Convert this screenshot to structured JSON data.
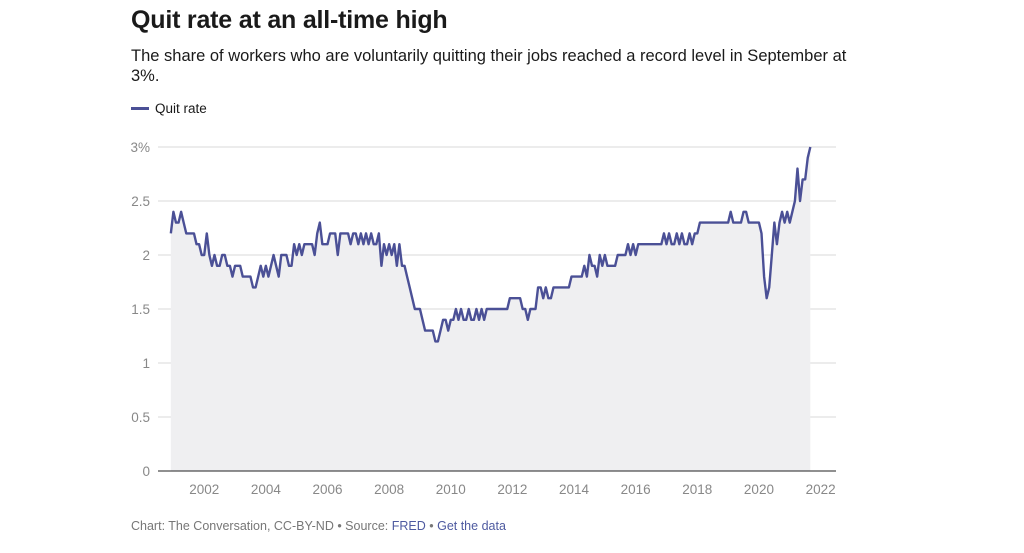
{
  "title": "Quit rate at an all-time high",
  "subtitle": "The share of workers who are voluntarily quitting their jobs reached a record level in September at 3%.",
  "footer": {
    "prefix": "Chart: The Conversation, CC-BY-ND • Source: ",
    "source": "FRED",
    "sep": " • ",
    "get_data": "Get the data"
  },
  "colors": {
    "line": "#4b5096",
    "area": "#efeff1",
    "grid": "#d9d9d9",
    "axis": "#222222"
  },
  "chart_data": {
    "type": "area",
    "series": [
      {
        "name": "Quit rate",
        "points": [
          [
            2000.917,
            2.2
          ],
          [
            2001.0,
            2.4
          ],
          [
            2001.083,
            2.3
          ],
          [
            2001.167,
            2.3
          ],
          [
            2001.25,
            2.4
          ],
          [
            2001.333,
            2.3
          ],
          [
            2001.417,
            2.2
          ],
          [
            2001.5,
            2.2
          ],
          [
            2001.583,
            2.2
          ],
          [
            2001.667,
            2.2
          ],
          [
            2001.75,
            2.1
          ],
          [
            2001.833,
            2.1
          ],
          [
            2001.917,
            2.0
          ],
          [
            2002.0,
            2.0
          ],
          [
            2002.083,
            2.2
          ],
          [
            2002.167,
            2.0
          ],
          [
            2002.25,
            1.9
          ],
          [
            2002.333,
            2.0
          ],
          [
            2002.417,
            1.9
          ],
          [
            2002.5,
            1.9
          ],
          [
            2002.583,
            2.0
          ],
          [
            2002.667,
            2.0
          ],
          [
            2002.75,
            1.9
          ],
          [
            2002.833,
            1.9
          ],
          [
            2002.917,
            1.8
          ],
          [
            2003.0,
            1.9
          ],
          [
            2003.083,
            1.9
          ],
          [
            2003.167,
            1.9
          ],
          [
            2003.25,
            1.8
          ],
          [
            2003.333,
            1.8
          ],
          [
            2003.417,
            1.8
          ],
          [
            2003.5,
            1.8
          ],
          [
            2003.583,
            1.7
          ],
          [
            2003.667,
            1.7
          ],
          [
            2003.75,
            1.8
          ],
          [
            2003.833,
            1.9
          ],
          [
            2003.917,
            1.8
          ],
          [
            2004.0,
            1.9
          ],
          [
            2004.083,
            1.8
          ],
          [
            2004.167,
            1.9
          ],
          [
            2004.25,
            2.0
          ],
          [
            2004.333,
            1.9
          ],
          [
            2004.417,
            1.8
          ],
          [
            2004.5,
            2.0
          ],
          [
            2004.583,
            2.0
          ],
          [
            2004.667,
            2.0
          ],
          [
            2004.75,
            1.9
          ],
          [
            2004.833,
            1.9
          ],
          [
            2004.917,
            2.1
          ],
          [
            2005.0,
            2.0
          ],
          [
            2005.083,
            2.1
          ],
          [
            2005.167,
            2.0
          ],
          [
            2005.25,
            2.1
          ],
          [
            2005.333,
            2.1
          ],
          [
            2005.417,
            2.1
          ],
          [
            2005.5,
            2.1
          ],
          [
            2005.583,
            2.0
          ],
          [
            2005.667,
            2.2
          ],
          [
            2005.75,
            2.3
          ],
          [
            2005.833,
            2.1
          ],
          [
            2005.917,
            2.1
          ],
          [
            2006.0,
            2.1
          ],
          [
            2006.083,
            2.2
          ],
          [
            2006.167,
            2.2
          ],
          [
            2006.25,
            2.2
          ],
          [
            2006.333,
            2.0
          ],
          [
            2006.417,
            2.2
          ],
          [
            2006.5,
            2.2
          ],
          [
            2006.583,
            2.2
          ],
          [
            2006.667,
            2.2
          ],
          [
            2006.75,
            2.1
          ],
          [
            2006.833,
            2.2
          ],
          [
            2006.917,
            2.2
          ],
          [
            2007.0,
            2.1
          ],
          [
            2007.083,
            2.2
          ],
          [
            2007.167,
            2.1
          ],
          [
            2007.25,
            2.2
          ],
          [
            2007.333,
            2.1
          ],
          [
            2007.417,
            2.2
          ],
          [
            2007.5,
            2.1
          ],
          [
            2007.583,
            2.1
          ],
          [
            2007.667,
            2.2
          ],
          [
            2007.75,
            1.9
          ],
          [
            2007.833,
            2.1
          ],
          [
            2007.917,
            2.0
          ],
          [
            2008.0,
            2.1
          ],
          [
            2008.083,
            2.0
          ],
          [
            2008.167,
            2.1
          ],
          [
            2008.25,
            1.9
          ],
          [
            2008.333,
            2.1
          ],
          [
            2008.417,
            1.9
          ],
          [
            2008.5,
            1.9
          ],
          [
            2008.583,
            1.8
          ],
          [
            2008.667,
            1.7
          ],
          [
            2008.75,
            1.6
          ],
          [
            2008.833,
            1.5
          ],
          [
            2008.917,
            1.5
          ],
          [
            2009.0,
            1.5
          ],
          [
            2009.083,
            1.4
          ],
          [
            2009.167,
            1.3
          ],
          [
            2009.25,
            1.3
          ],
          [
            2009.333,
            1.3
          ],
          [
            2009.417,
            1.3
          ],
          [
            2009.5,
            1.2
          ],
          [
            2009.583,
            1.2
          ],
          [
            2009.667,
            1.3
          ],
          [
            2009.75,
            1.4
          ],
          [
            2009.833,
            1.4
          ],
          [
            2009.917,
            1.3
          ],
          [
            2010.0,
            1.4
          ],
          [
            2010.083,
            1.4
          ],
          [
            2010.167,
            1.5
          ],
          [
            2010.25,
            1.4
          ],
          [
            2010.333,
            1.5
          ],
          [
            2010.417,
            1.4
          ],
          [
            2010.5,
            1.4
          ],
          [
            2010.583,
            1.5
          ],
          [
            2010.667,
            1.4
          ],
          [
            2010.75,
            1.4
          ],
          [
            2010.833,
            1.5
          ],
          [
            2010.917,
            1.4
          ],
          [
            2011.0,
            1.5
          ],
          [
            2011.083,
            1.4
          ],
          [
            2011.167,
            1.5
          ],
          [
            2011.25,
            1.5
          ],
          [
            2011.333,
            1.5
          ],
          [
            2011.417,
            1.5
          ],
          [
            2011.5,
            1.5
          ],
          [
            2011.583,
            1.5
          ],
          [
            2011.667,
            1.5
          ],
          [
            2011.75,
            1.5
          ],
          [
            2011.833,
            1.5
          ],
          [
            2011.917,
            1.6
          ],
          [
            2012.0,
            1.6
          ],
          [
            2012.083,
            1.6
          ],
          [
            2012.167,
            1.6
          ],
          [
            2012.25,
            1.6
          ],
          [
            2012.333,
            1.5
          ],
          [
            2012.417,
            1.5
          ],
          [
            2012.5,
            1.4
          ],
          [
            2012.583,
            1.5
          ],
          [
            2012.667,
            1.5
          ],
          [
            2012.75,
            1.5
          ],
          [
            2012.833,
            1.7
          ],
          [
            2012.917,
            1.7
          ],
          [
            2013.0,
            1.6
          ],
          [
            2013.083,
            1.7
          ],
          [
            2013.167,
            1.6
          ],
          [
            2013.25,
            1.6
          ],
          [
            2013.333,
            1.7
          ],
          [
            2013.417,
            1.7
          ],
          [
            2013.5,
            1.7
          ],
          [
            2013.583,
            1.7
          ],
          [
            2013.667,
            1.7
          ],
          [
            2013.75,
            1.7
          ],
          [
            2013.833,
            1.7
          ],
          [
            2013.917,
            1.8
          ],
          [
            2014.0,
            1.8
          ],
          [
            2014.083,
            1.8
          ],
          [
            2014.167,
            1.8
          ],
          [
            2014.25,
            1.8
          ],
          [
            2014.333,
            1.9
          ],
          [
            2014.417,
            1.8
          ],
          [
            2014.5,
            2.0
          ],
          [
            2014.583,
            1.9
          ],
          [
            2014.667,
            1.9
          ],
          [
            2014.75,
            1.8
          ],
          [
            2014.833,
            2.0
          ],
          [
            2014.917,
            1.9
          ],
          [
            2015.0,
            2.0
          ],
          [
            2015.083,
            1.9
          ],
          [
            2015.167,
            1.9
          ],
          [
            2015.25,
            1.9
          ],
          [
            2015.333,
            1.9
          ],
          [
            2015.417,
            2.0
          ],
          [
            2015.5,
            2.0
          ],
          [
            2015.583,
            2.0
          ],
          [
            2015.667,
            2.0
          ],
          [
            2015.75,
            2.1
          ],
          [
            2015.833,
            2.0
          ],
          [
            2015.917,
            2.1
          ],
          [
            2016.0,
            2.0
          ],
          [
            2016.083,
            2.1
          ],
          [
            2016.167,
            2.1
          ],
          [
            2016.25,
            2.1
          ],
          [
            2016.333,
            2.1
          ],
          [
            2016.417,
            2.1
          ],
          [
            2016.5,
            2.1
          ],
          [
            2016.583,
            2.1
          ],
          [
            2016.667,
            2.1
          ],
          [
            2016.75,
            2.1
          ],
          [
            2016.833,
            2.1
          ],
          [
            2016.917,
            2.2
          ],
          [
            2017.0,
            2.1
          ],
          [
            2017.083,
            2.2
          ],
          [
            2017.167,
            2.1
          ],
          [
            2017.25,
            2.1
          ],
          [
            2017.333,
            2.2
          ],
          [
            2017.417,
            2.1
          ],
          [
            2017.5,
            2.2
          ],
          [
            2017.583,
            2.1
          ],
          [
            2017.667,
            2.1
          ],
          [
            2017.75,
            2.2
          ],
          [
            2017.833,
            2.1
          ],
          [
            2017.917,
            2.2
          ],
          [
            2018.0,
            2.2
          ],
          [
            2018.083,
            2.3
          ],
          [
            2018.167,
            2.3
          ],
          [
            2018.25,
            2.3
          ],
          [
            2018.333,
            2.3
          ],
          [
            2018.417,
            2.3
          ],
          [
            2018.5,
            2.3
          ],
          [
            2018.583,
            2.3
          ],
          [
            2018.667,
            2.3
          ],
          [
            2018.75,
            2.3
          ],
          [
            2018.833,
            2.3
          ],
          [
            2018.917,
            2.3
          ],
          [
            2019.0,
            2.3
          ],
          [
            2019.083,
            2.4
          ],
          [
            2019.167,
            2.3
          ],
          [
            2019.25,
            2.3
          ],
          [
            2019.333,
            2.3
          ],
          [
            2019.417,
            2.3
          ],
          [
            2019.5,
            2.4
          ],
          [
            2019.583,
            2.4
          ],
          [
            2019.667,
            2.3
          ],
          [
            2019.75,
            2.3
          ],
          [
            2019.833,
            2.3
          ],
          [
            2019.917,
            2.3
          ],
          [
            2020.0,
            2.3
          ],
          [
            2020.083,
            2.2
          ],
          [
            2020.167,
            1.8
          ],
          [
            2020.25,
            1.6
          ],
          [
            2020.333,
            1.7
          ],
          [
            2020.417,
            2.0
          ],
          [
            2020.5,
            2.3
          ],
          [
            2020.583,
            2.1
          ],
          [
            2020.667,
            2.3
          ],
          [
            2020.75,
            2.4
          ],
          [
            2020.833,
            2.3
          ],
          [
            2020.917,
            2.4
          ],
          [
            2021.0,
            2.3
          ],
          [
            2021.083,
            2.4
          ],
          [
            2021.167,
            2.5
          ],
          [
            2021.25,
            2.8
          ],
          [
            2021.333,
            2.5
          ],
          [
            2021.417,
            2.7
          ],
          [
            2021.5,
            2.7
          ],
          [
            2021.583,
            2.9
          ],
          [
            2021.667,
            3.0
          ]
        ]
      }
    ],
    "xlim": [
      2000.5,
      2022.5
    ],
    "ylim": [
      0,
      3
    ],
    "x_ticks": [
      2002,
      2004,
      2006,
      2008,
      2010,
      2012,
      2014,
      2016,
      2018,
      2020,
      2022
    ],
    "x_tick_labels": [
      "2002",
      "2004",
      "2006",
      "2008",
      "2010",
      "2012",
      "2014",
      "2016",
      "2018",
      "2020",
      "2022"
    ],
    "y_ticks": [
      0,
      0.5,
      1,
      1.5,
      2,
      2.5,
      3
    ],
    "y_tick_labels": [
      "0",
      "0.5",
      "1",
      "1.5",
      "2",
      "2.5",
      "3%"
    ],
    "grid": true,
    "legend": "top-left"
  }
}
